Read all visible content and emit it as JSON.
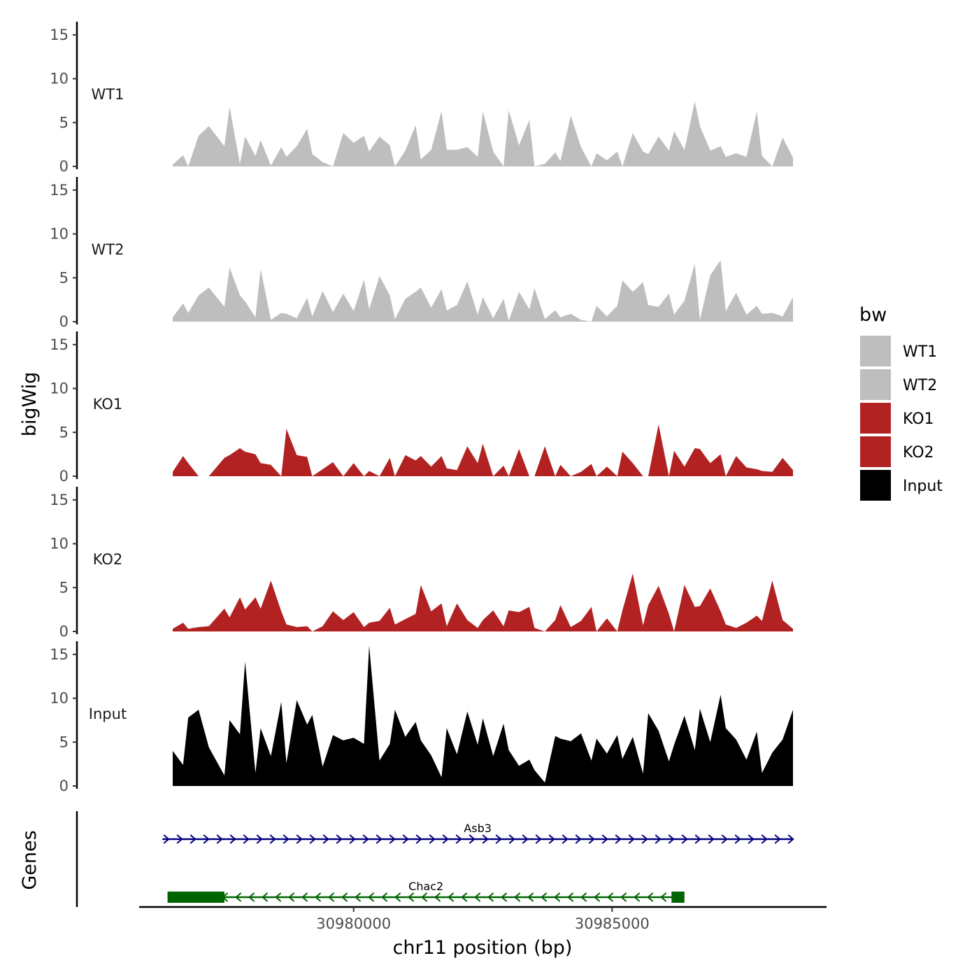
{
  "chart_data": {
    "type": "area",
    "xlabel": "chr11 position (bp)",
    "ylabel": "bigWig",
    "genes_label": "Genes",
    "x_range": [
      30976500,
      30988500
    ],
    "x_ticks": [
      30980000,
      30985000
    ],
    "x_tick_labels": [
      "30980000",
      "30985000"
    ],
    "ylim": [
      0,
      16.5
    ],
    "y_ticks": [
      0,
      5,
      10,
      15
    ],
    "y_tick_labels": [
      "0",
      "5",
      "10",
      "15"
    ],
    "legend": {
      "title": "bw",
      "entries": [
        {
          "name": "WT1",
          "color": "#BEBEBE"
        },
        {
          "name": "WT2",
          "color": "#BEBEBE"
        },
        {
          "name": "KO1",
          "color": "#B22222"
        },
        {
          "name": "KO2",
          "color": "#B22222"
        },
        {
          "name": "Input",
          "color": "#000000"
        }
      ]
    },
    "series": [
      {
        "name": "WT1",
        "label": "WT1",
        "color": "#BEBEBE",
        "x": [
          30976500,
          30976700,
          30976800,
          30977000,
          30977200,
          30977500,
          30977600,
          30977800,
          30977900,
          30978100,
          30978200,
          30978400,
          30978600,
          30978700,
          30978900,
          30979100,
          30979200,
          30979400,
          30979600,
          30979800,
          30980000,
          30980200,
          30980300,
          30980500,
          30980700,
          30980800,
          30981000,
          30981200,
          30981300,
          30981500,
          30981700,
          30981800,
          30982000,
          30982200,
          30982400,
          30982500,
          30982700,
          30982900,
          30983000,
          30983200,
          30983400,
          30983500,
          30983700,
          30983900,
          30984000,
          30984200,
          30984400,
          30984600,
          30984700,
          30984900,
          30985100,
          30985200,
          30985400,
          30985600,
          30985700,
          30985900,
          30986100,
          30986200,
          30986400,
          30986600,
          30986700,
          30986900,
          30987100,
          30987200,
          30987400,
          30987600,
          30987800,
          30987900,
          30988100,
          30988300,
          30988500
        ],
        "values": [
          0.2,
          1.3,
          0,
          3.5,
          4.6,
          2.3,
          6.8,
          0.3,
          3.4,
          1.2,
          3.0,
          0.1,
          2.2,
          1.1,
          2.3,
          4.3,
          1.4,
          0.5,
          0,
          3.8,
          2.7,
          3.5,
          1.7,
          3.4,
          2.4,
          0,
          1.8,
          4.7,
          0.8,
          1.9,
          6.3,
          1.9,
          1.9,
          2.2,
          1.1,
          6.3,
          1.7,
          0,
          6.4,
          2.4,
          5.3,
          0,
          0.3,
          1.6,
          0.6,
          5.8,
          2.2,
          0,
          1.5,
          0.7,
          1.7,
          0,
          3.8,
          1.7,
          1.4,
          3.4,
          1.8,
          4.0,
          1.9,
          7.4,
          4.6,
          1.8,
          2.3,
          1.1,
          1.5,
          1.1,
          6.3,
          1.2,
          0,
          3.3,
          1.0
        ]
      },
      {
        "name": "WT2",
        "label": "WT2",
        "color": "#BEBEBE",
        "x": [
          30976500,
          30976700,
          30976800,
          30977000,
          30977200,
          30977500,
          30977600,
          30977800,
          30977900,
          30978100,
          30978200,
          30978400,
          30978600,
          30978700,
          30978900,
          30979100,
          30979200,
          30979400,
          30979600,
          30979800,
          30980000,
          30980200,
          30980300,
          30980500,
          30980700,
          30980800,
          30981000,
          30981200,
          30981300,
          30981500,
          30981700,
          30981800,
          30982000,
          30982200,
          30982400,
          30982500,
          30982700,
          30982900,
          30983000,
          30983200,
          30983400,
          30983500,
          30983700,
          30983900,
          30984000,
          30984200,
          30984400,
          30984600,
          30984700,
          30984900,
          30985100,
          30985200,
          30985400,
          30985600,
          30985700,
          30985900,
          30986100,
          30986200,
          30986400,
          30986600,
          30986700,
          30986900,
          30987100,
          30987200,
          30987400,
          30987600,
          30987800,
          30987900,
          30988100,
          30988300,
          30988500
        ],
        "values": [
          0.5,
          2.1,
          1.0,
          3.0,
          3.9,
          1.7,
          6.2,
          3.0,
          2.3,
          0.5,
          6.0,
          0.2,
          1.0,
          0.9,
          0.4,
          2.7,
          0.6,
          3.5,
          1.1,
          3.2,
          1.2,
          4.8,
          1.4,
          5.2,
          3.0,
          0.3,
          2.6,
          3.4,
          3.9,
          1.6,
          3.7,
          1.3,
          1.9,
          4.6,
          0.8,
          2.8,
          0.4,
          2.6,
          0.1,
          3.4,
          1.4,
          3.8,
          0.3,
          1.3,
          0.5,
          0.9,
          0.2,
          0,
          1.8,
          0.6,
          1.8,
          4.7,
          3.4,
          4.5,
          1.9,
          1.7,
          3.2,
          0.8,
          2.4,
          6.6,
          0.2,
          5.3,
          7.0,
          1.2,
          3.3,
          0.8,
          1.8,
          0.9,
          1.0,
          0.6,
          2.8
        ]
      },
      {
        "name": "KO1",
        "label": "KO1",
        "color": "#B22222",
        "x": [
          30976500,
          30976700,
          30976800,
          30977000,
          30977200,
          30977500,
          30977600,
          30977800,
          30977900,
          30978100,
          30978200,
          30978400,
          30978600,
          30978700,
          30978900,
          30979100,
          30979200,
          30979400,
          30979600,
          30979800,
          30980000,
          30980200,
          30980300,
          30980500,
          30980700,
          30980800,
          30981000,
          30981200,
          30981300,
          30981500,
          30981700,
          30981800,
          30982000,
          30982200,
          30982400,
          30982500,
          30982700,
          30982900,
          30983000,
          30983200,
          30983400,
          30983500,
          30983700,
          30983900,
          30984000,
          30984200,
          30984400,
          30984600,
          30984700,
          30984900,
          30985100,
          30985200,
          30985400,
          30985600,
          30985700,
          30985900,
          30986100,
          30986200,
          30986400,
          30986600,
          30986700,
          30986900,
          30987100,
          30987200,
          30987400,
          30987600,
          30987800,
          30987900,
          30988100,
          30988300,
          30988500
        ],
        "values": [
          0.5,
          2.3,
          1.5,
          0,
          0,
          2.1,
          2.4,
          3.2,
          2.8,
          2.5,
          1.5,
          1.3,
          0,
          5.4,
          2.4,
          2.2,
          0,
          0.8,
          1.6,
          0,
          1.5,
          0,
          0.6,
          0,
          2.1,
          0,
          2.4,
          1.8,
          2.3,
          1.1,
          2.3,
          0.9,
          0.7,
          3.4,
          1.5,
          3.7,
          0,
          1.2,
          0,
          3.1,
          0,
          0,
          3.4,
          0,
          1.3,
          0,
          0.5,
          1.4,
          0,
          1.1,
          0,
          2.8,
          1.5,
          0,
          0,
          5.9,
          0,
          2.9,
          1.1,
          3.2,
          3.1,
          1.5,
          2.5,
          0,
          2.3,
          1.0,
          0.8,
          0.6,
          0.5,
          2.1,
          0.7
        ]
      },
      {
        "name": "KO2",
        "label": "KO2",
        "color": "#B22222",
        "x": [
          30976500,
          30976700,
          30976800,
          30977000,
          30977200,
          30977500,
          30977600,
          30977800,
          30977900,
          30978100,
          30978200,
          30978400,
          30978600,
          30978700,
          30978900,
          30979100,
          30979200,
          30979400,
          30979600,
          30979800,
          30980000,
          30980200,
          30980300,
          30980500,
          30980700,
          30980800,
          30981000,
          30981200,
          30981300,
          30981500,
          30981700,
          30981800,
          30982000,
          30982200,
          30982400,
          30982500,
          30982700,
          30982900,
          30983000,
          30983200,
          30983400,
          30983500,
          30983700,
          30983900,
          30984000,
          30984200,
          30984400,
          30984600,
          30984700,
          30984900,
          30985100,
          30985200,
          30985400,
          30985600,
          30985700,
          30985900,
          30986100,
          30986200,
          30986400,
          30986600,
          30986700,
          30986900,
          30987100,
          30987200,
          30987400,
          30987600,
          30987800,
          30987900,
          30988100,
          30988300,
          30988500
        ],
        "values": [
          0.3,
          1.0,
          0.3,
          0.5,
          0.6,
          2.6,
          1.6,
          3.9,
          2.5,
          3.9,
          2.6,
          5.8,
          2.3,
          0.8,
          0.5,
          0.6,
          0,
          0.6,
          2.3,
          1.3,
          2.2,
          0.5,
          1.0,
          1.2,
          2.7,
          0.8,
          1.4,
          2.0,
          5.3,
          2.3,
          3.2,
          0.6,
          3.2,
          1.3,
          0.4,
          1.3,
          2.4,
          0.6,
          2.4,
          2.2,
          2.8,
          0.4,
          0,
          1.3,
          3.0,
          0.5,
          1.2,
          2.8,
          0,
          1.5,
          0,
          2.4,
          6.6,
          0.7,
          3.0,
          5.2,
          2.0,
          0,
          5.3,
          2.8,
          2.9,
          4.9,
          2.3,
          0.8,
          0.4,
          1.0,
          1.8,
          1.2,
          5.8,
          1.3,
          0.3
        ]
      },
      {
        "name": "Input",
        "label": "Input",
        "color": "#000000",
        "x": [
          30976500,
          30976700,
          30976800,
          30977000,
          30977200,
          30977500,
          30977600,
          30977800,
          30977900,
          30978100,
          30978200,
          30978400,
          30978600,
          30978700,
          30978900,
          30979100,
          30979200,
          30979400,
          30979600,
          30979800,
          30980000,
          30980200,
          30980300,
          30980500,
          30980700,
          30980800,
          30981000,
          30981200,
          30981300,
          30981500,
          30981700,
          30981800,
          30982000,
          30982200,
          30982400,
          30982500,
          30982700,
          30982900,
          30983000,
          30983200,
          30983400,
          30983500,
          30983700,
          30983900,
          30984000,
          30984200,
          30984400,
          30984600,
          30984700,
          30984900,
          30985100,
          30985200,
          30985400,
          30985600,
          30985700,
          30985900,
          30986100,
          30986200,
          30986400,
          30986600,
          30986700,
          30986900,
          30987100,
          30987200,
          30987400,
          30987600,
          30987800,
          30987900,
          30988100,
          30988300,
          30988500
        ],
        "values": [
          4.0,
          2.4,
          7.8,
          8.7,
          4.4,
          1.2,
          7.5,
          5.9,
          14.2,
          1.5,
          6.6,
          3.4,
          9.6,
          2.6,
          9.8,
          7.0,
          8.1,
          2.2,
          5.8,
          5.2,
          5.5,
          4.8,
          16.0,
          2.9,
          4.8,
          8.7,
          5.6,
          7.3,
          5.2,
          3.5,
          1.0,
          6.6,
          3.6,
          8.5,
          4.7,
          7.7,
          3.4,
          7.1,
          4.1,
          2.3,
          3.0,
          1.8,
          0.4,
          5.7,
          5.4,
          5.1,
          6.0,
          2.9,
          5.4,
          3.7,
          5.8,
          3.1,
          5.6,
          1.4,
          8.3,
          6.3,
          2.8,
          4.7,
          8.0,
          4.1,
          8.8,
          5.0,
          10.4,
          6.6,
          5.3,
          3.0,
          6.2,
          1.5,
          3.8,
          5.3,
          8.7
        ]
      }
    ],
    "genes": [
      {
        "name": "Asb3",
        "strand": "+",
        "start": 30976300,
        "end": 30988500,
        "color": "#000080",
        "exons": []
      },
      {
        "name": "Chac2",
        "strand": "-",
        "start": 30976400,
        "end": 30986400,
        "color": "#006400",
        "exons": [
          [
            30976400,
            30977500
          ],
          [
            30986150,
            30986400
          ]
        ]
      }
    ]
  }
}
